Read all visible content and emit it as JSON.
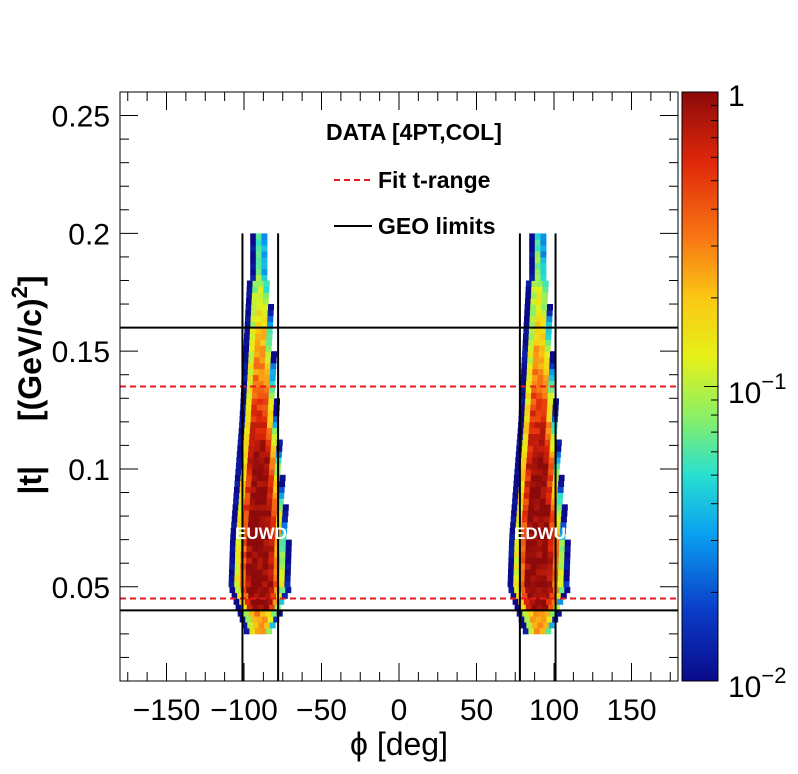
{
  "chart_data": {
    "type": "heatmap",
    "title": "DATA [4PT,COL]",
    "xlabel": "ϕ [deg]",
    "ylabel_main": "|t|",
    "ylabel_unit_open": "[(GeV/c)",
    "ylabel_unit_exp": "2",
    "ylabel_unit_close": "]",
    "xlim": [
      -180,
      180
    ],
    "ylim": [
      0.01,
      0.26
    ],
    "x_ticks": [
      -150,
      -100,
      -50,
      0,
      50,
      100,
      150
    ],
    "x_tick_labels": [
      "−150",
      "−100",
      "−50",
      "0",
      "50",
      "100",
      "150"
    ],
    "y_ticks": [
      0.05,
      0.1,
      0.15,
      0.2,
      0.25
    ],
    "y_tick_labels": [
      "0.05",
      "0.1",
      "0.15",
      "0.2",
      "0.25"
    ],
    "color_scale": {
      "type": "log",
      "min": 0.01,
      "max": 1,
      "labels": [
        {
          "value": 1,
          "base": "1",
          "exp": ""
        },
        {
          "value": 0.1,
          "base": "10",
          "exp": "−1"
        },
        {
          "value": 0.01,
          "base": "10",
          "exp": "−2"
        }
      ]
    },
    "legend": [
      {
        "label": "Fit t-range",
        "style": "dashed",
        "color": "#e8191c"
      },
      {
        "label": "GEO limits",
        "style": "solid",
        "color": "#000000"
      }
    ],
    "fit_t_range": [
      0.045,
      0.135
    ],
    "geo_t_limits": [
      0.04,
      0.16
    ],
    "geo_phi_limits": [
      [
        -101,
        -78
      ],
      [
        78,
        101
      ]
    ],
    "regions": [
      {
        "label": "EUWD",
        "phi_center": -90,
        "t_label": 0.073
      },
      {
        "label": "EDWU",
        "phi_center": 90,
        "t_label": 0.073
      }
    ]
  }
}
